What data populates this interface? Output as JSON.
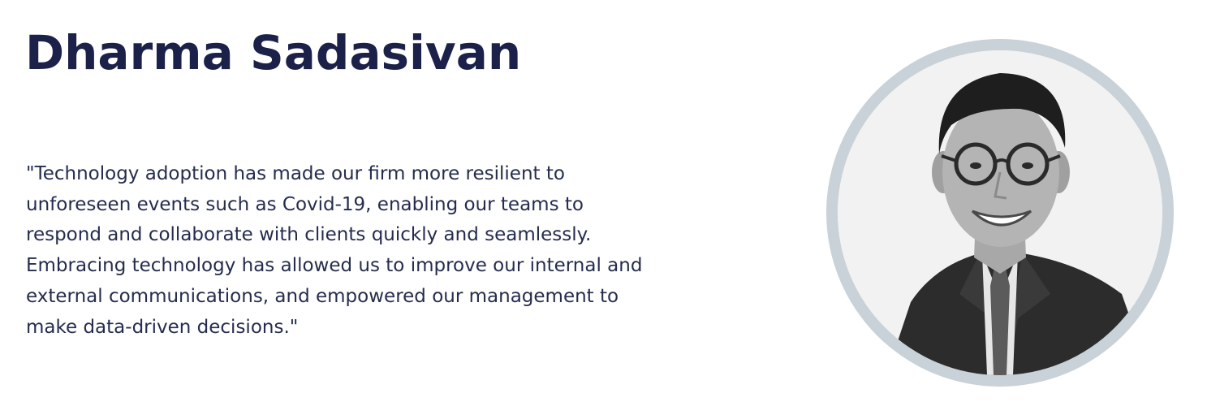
{
  "person": {
    "name": "Dharma Sadasivan",
    "quote_lines": [
      "\"Technology adoption has made our firm more resilient to",
      "unforeseen events such as Covid-19, enabling our teams to",
      "respond and collaborate with clients quickly and seamlessly.",
      "Embracing technology has allowed us to improve our internal and",
      "external communications, and empowered our management to",
      "make data-driven decisions.\""
    ]
  },
  "colors": {
    "heading": "#1b2149",
    "body_text": "#262c4e",
    "ring": "#c9d2d8",
    "background": "#ffffff"
  },
  "icons": {
    "portrait": "person-portrait-icon"
  }
}
